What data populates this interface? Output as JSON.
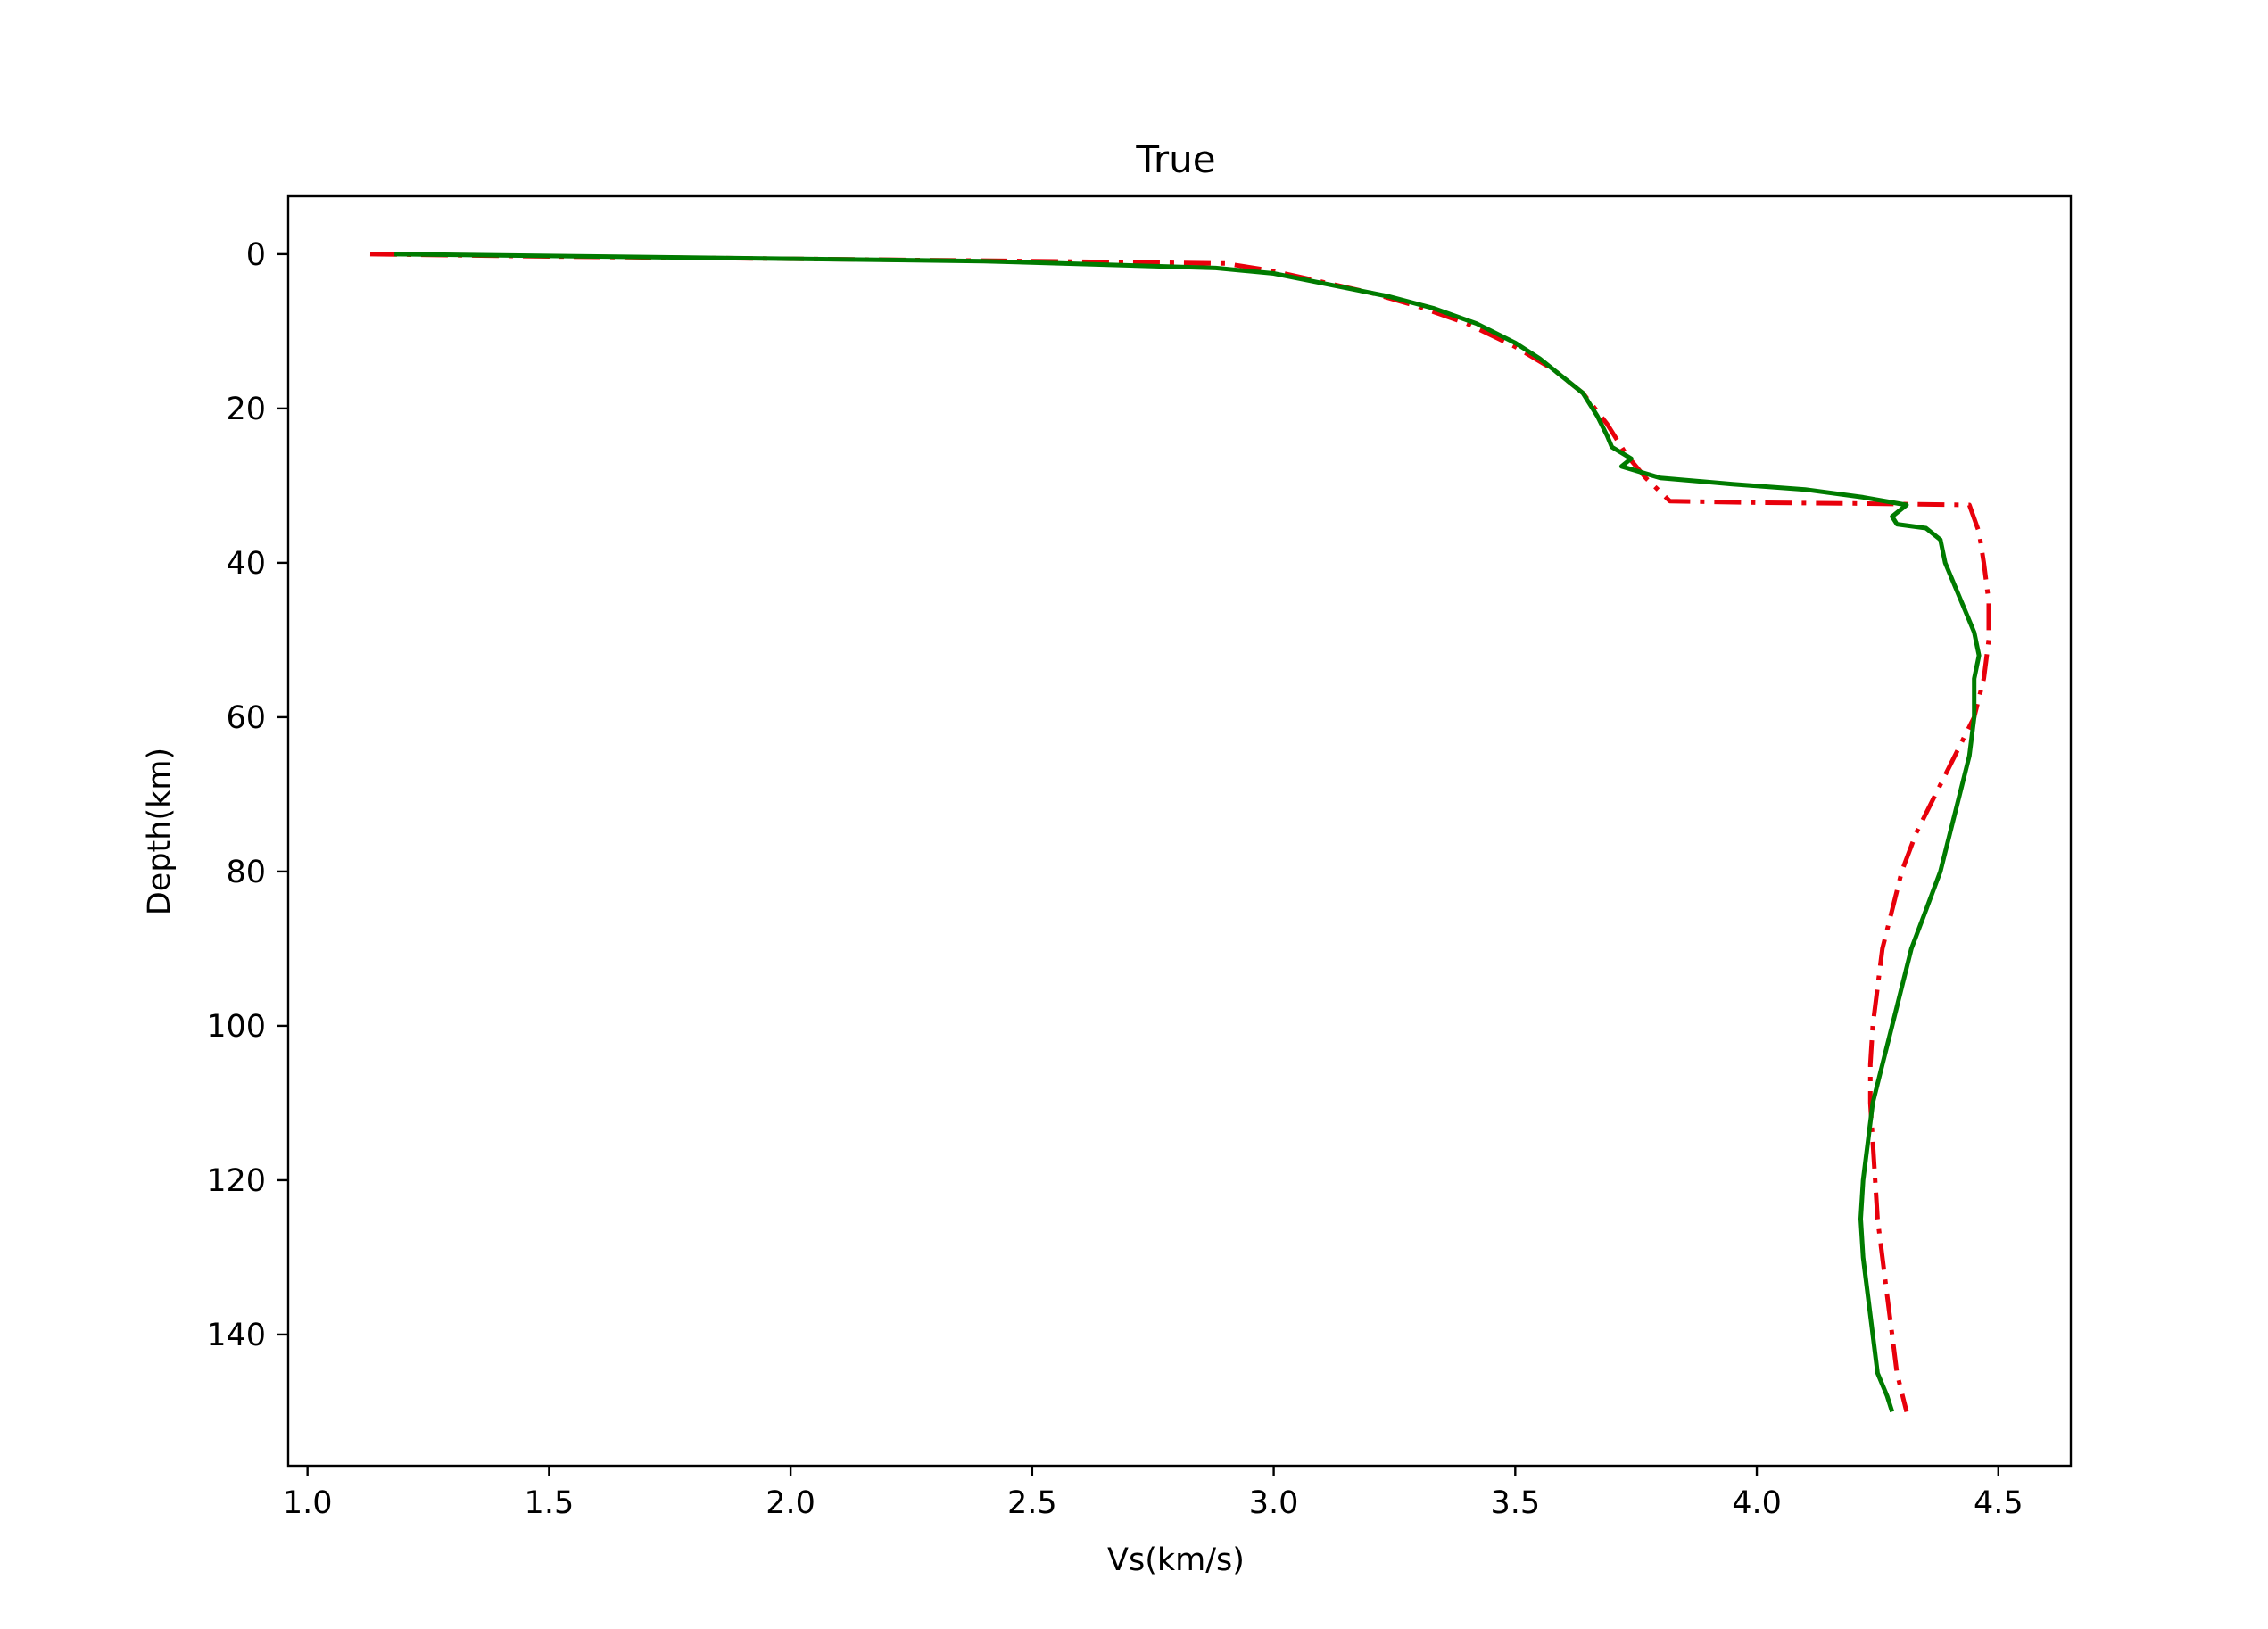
{
  "chart_data": {
    "type": "line",
    "title": "True",
    "xlabel": "Vs(km/s)",
    "ylabel": "Depth(km)",
    "xlim": [
      0.96,
      4.65
    ],
    "ylim": [
      157,
      -7.5
    ],
    "y_inverted": true,
    "x_ticks": [
      "1.0",
      "1.5",
      "2.0",
      "2.5",
      "3.0",
      "3.5",
      "4.0",
      "4.5"
    ],
    "y_ticks": [
      "0",
      "20",
      "40",
      "60",
      "80",
      "100",
      "120",
      "140"
    ],
    "grid": false,
    "legend": "none",
    "series": [
      {
        "style": "dash-dot",
        "color": "#e8000b",
        "points": [
          [
            1.13,
            0
          ],
          [
            1.5,
            0.3
          ],
          [
            2.0,
            0.6
          ],
          [
            2.5,
            0.9
          ],
          [
            2.9,
            1.2
          ],
          [
            3.0,
            2.2
          ],
          [
            3.1,
            3.6
          ],
          [
            3.2,
            5.0
          ],
          [
            3.3,
            6.8
          ],
          [
            3.4,
            9.0
          ],
          [
            3.5,
            12.0
          ],
          [
            3.58,
            15.0
          ],
          [
            3.64,
            18.0
          ],
          [
            3.69,
            22.0
          ],
          [
            3.73,
            26.0
          ],
          [
            3.77,
            29.0
          ],
          [
            3.82,
            32.0
          ],
          [
            4.0,
            32.2
          ],
          [
            4.2,
            32.3
          ],
          [
            4.44,
            32.5
          ],
          [
            4.46,
            36.0
          ],
          [
            4.47,
            40.0
          ],
          [
            4.48,
            45.0
          ],
          [
            4.48,
            50.0
          ],
          [
            4.47,
            55.0
          ],
          [
            4.45,
            60.0
          ],
          [
            4.41,
            65.0
          ],
          [
            4.37,
            70.0
          ],
          [
            4.33,
            75.0
          ],
          [
            4.3,
            80.0
          ],
          [
            4.28,
            85.0
          ],
          [
            4.26,
            90.0
          ],
          [
            4.25,
            95.0
          ],
          [
            4.24,
            100.0
          ],
          [
            4.235,
            105.0
          ],
          [
            4.235,
            110.0
          ],
          [
            4.24,
            115.0
          ],
          [
            4.245,
            120.0
          ],
          [
            4.25,
            125.0
          ],
          [
            4.26,
            130.0
          ],
          [
            4.27,
            135.0
          ],
          [
            4.28,
            140.0
          ],
          [
            4.29,
            145.0
          ],
          [
            4.31,
            150.0
          ]
        ]
      },
      {
        "style": "solid",
        "color": "#007b00",
        "points": [
          [
            1.18,
            0
          ],
          [
            1.6,
            0.3
          ],
          [
            2.0,
            0.6
          ],
          [
            2.4,
            0.9
          ],
          [
            2.88,
            1.8
          ],
          [
            3.0,
            2.5
          ],
          [
            3.08,
            3.5
          ],
          [
            3.16,
            4.5
          ],
          [
            3.24,
            5.5
          ],
          [
            3.33,
            7.0
          ],
          [
            3.42,
            9.0
          ],
          [
            3.5,
            11.5
          ],
          [
            3.55,
            13.5
          ],
          [
            3.6,
            16.0
          ],
          [
            3.64,
            18.0
          ],
          [
            3.67,
            21.0
          ],
          [
            3.69,
            23.5
          ],
          [
            3.7,
            25.0
          ],
          [
            3.74,
            26.5
          ],
          [
            3.72,
            27.5
          ],
          [
            3.8,
            29.0
          ],
          [
            3.95,
            29.8
          ],
          [
            4.1,
            30.5
          ],
          [
            4.22,
            31.5
          ],
          [
            4.31,
            32.5
          ],
          [
            4.28,
            34.0
          ],
          [
            4.29,
            35.0
          ],
          [
            4.35,
            35.5
          ],
          [
            4.38,
            37.0
          ],
          [
            4.39,
            40.0
          ],
          [
            4.41,
            43.0
          ],
          [
            4.43,
            46.0
          ],
          [
            4.45,
            49.0
          ],
          [
            4.46,
            52.0
          ],
          [
            4.45,
            55.0
          ],
          [
            4.45,
            60.0
          ],
          [
            4.44,
            65.0
          ],
          [
            4.42,
            70.0
          ],
          [
            4.4,
            75.0
          ],
          [
            4.38,
            80.0
          ],
          [
            4.35,
            85.0
          ],
          [
            4.32,
            90.0
          ],
          [
            4.3,
            95.0
          ],
          [
            4.28,
            100.0
          ],
          [
            4.26,
            105.0
          ],
          [
            4.24,
            110.0
          ],
          [
            4.23,
            115.0
          ],
          [
            4.22,
            120.0
          ],
          [
            4.215,
            125.0
          ],
          [
            4.22,
            130.0
          ],
          [
            4.23,
            135.0
          ],
          [
            4.24,
            140.0
          ],
          [
            4.25,
            145.0
          ],
          [
            4.27,
            148.0
          ],
          [
            4.28,
            150.0
          ]
        ]
      }
    ]
  }
}
